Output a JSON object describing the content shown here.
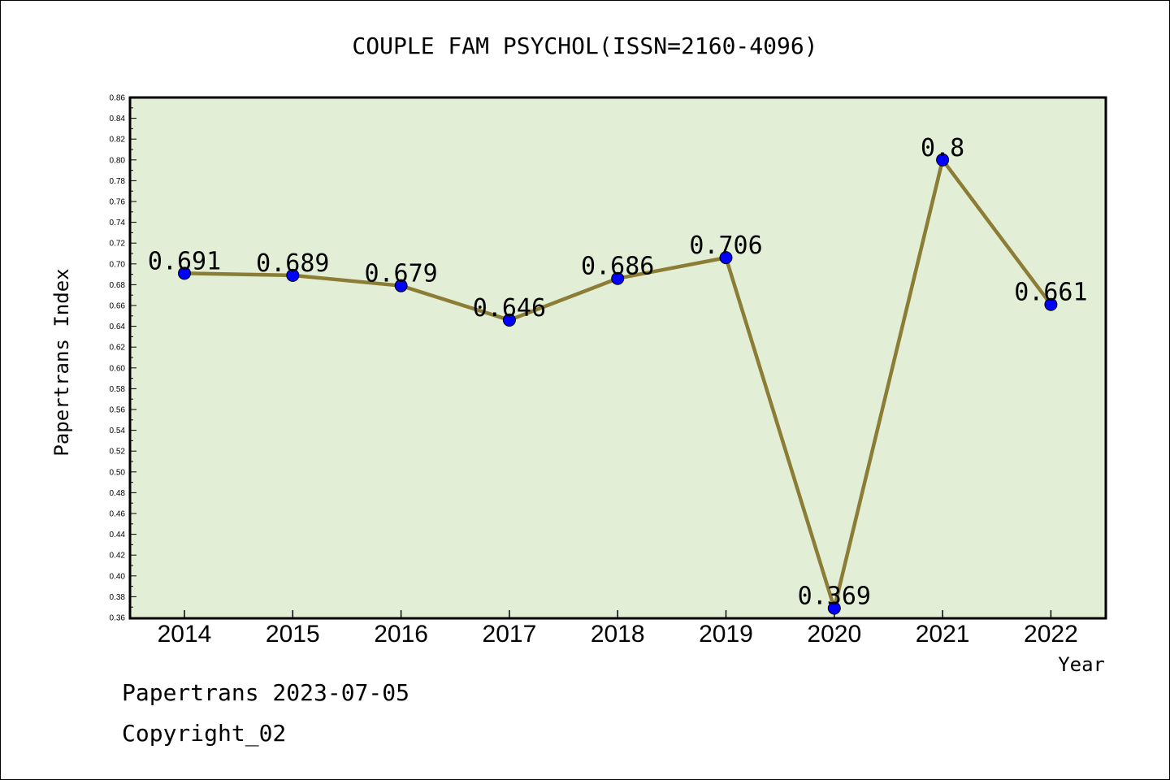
{
  "chart_data": {
    "type": "line",
    "title": "COUPLE FAM PSYCHOL(ISSN=2160-4096)",
    "xlabel": "Year",
    "ylabel": "Papertrans Index",
    "categories": [
      "2014",
      "2015",
      "2016",
      "2017",
      "2018",
      "2019",
      "2020",
      "2021",
      "2022"
    ],
    "values": [
      0.691,
      0.689,
      0.679,
      0.646,
      0.686,
      0.706,
      0.369,
      0.8,
      0.661
    ],
    "data_labels": [
      "0.691",
      "0.689",
      "0.679",
      "0.646",
      "0.686",
      "0.706",
      "0.369",
      "0.8",
      "0.661"
    ],
    "ylim": [
      0.36,
      0.86
    ],
    "ytick_labels": [
      "0.36",
      "0.38",
      "0.40",
      "0.42",
      "0.44",
      "0.46",
      "0.48",
      "0.50",
      "0.52",
      "0.54",
      "0.56",
      "0.58",
      "0.60",
      "0.62",
      "0.64",
      "0.66",
      "0.68",
      "0.70",
      "0.72",
      "0.74",
      "0.76",
      "0.78",
      "0.80",
      "0.82",
      "0.84",
      "0.86"
    ],
    "grid": false,
    "colors": {
      "plot_background": "#e2efd6",
      "line": "#8b7d35",
      "marker": "#0000ff"
    }
  },
  "footer": {
    "line1": "Papertrans 2023-07-05",
    "line2": "Copyright_02"
  }
}
